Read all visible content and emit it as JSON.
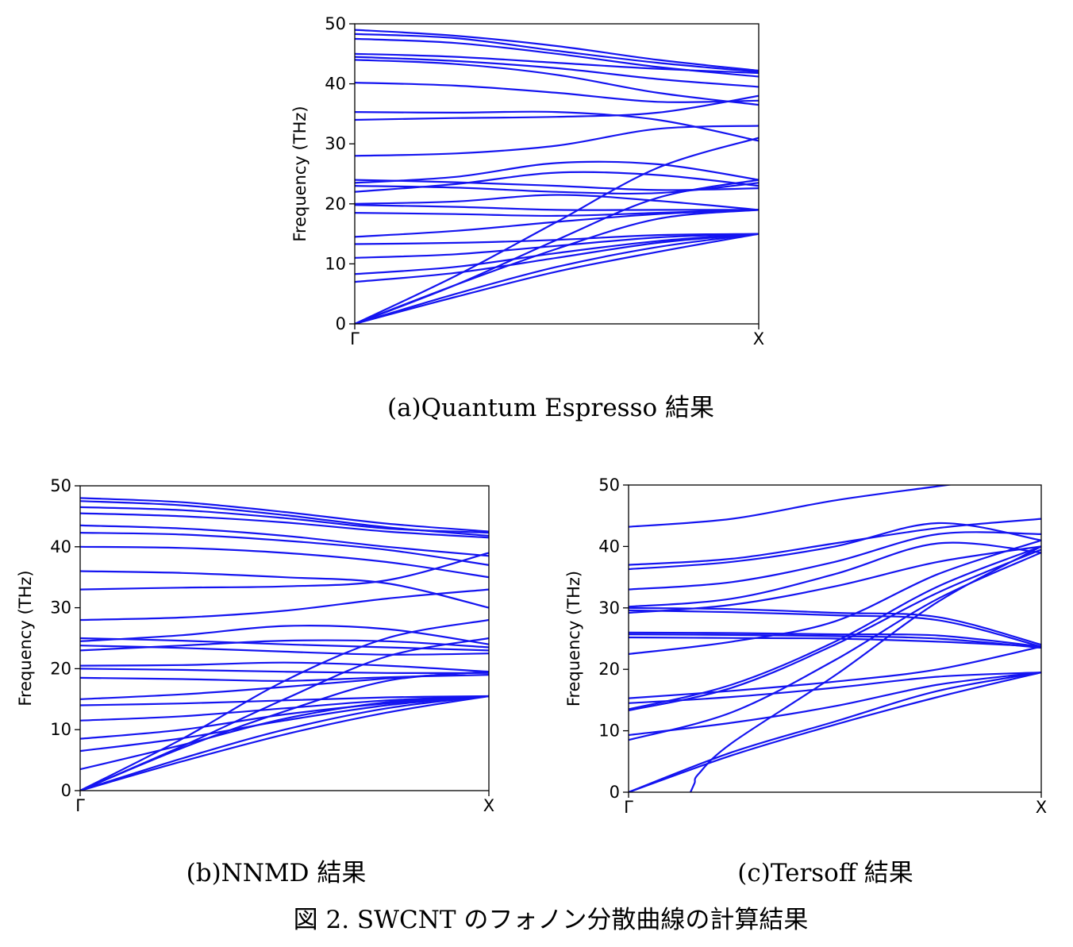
{
  "captions": {
    "a": "(a)Quantum Espresso 結果",
    "b": "(b)NNMD 結果",
    "c": "(c)Tersoff 結果",
    "figure": "図 2. SWCNT のフォノン分散曲線の計算結果"
  },
  "colors": {
    "band": "#1414f0",
    "axis": "#000000"
  },
  "chart_data": [
    {
      "id": "a",
      "type": "line",
      "ylabel": "Frequency (THz)",
      "xticks": [
        "Γ",
        "X"
      ],
      "x": [
        0,
        0.25,
        0.5,
        0.75,
        1
      ],
      "ylim": [
        0,
        50
      ],
      "yticks": [
        0,
        10,
        20,
        30,
        40,
        50
      ],
      "grid": false,
      "series": [
        {
          "values": [
            49,
            48,
            46.3,
            44,
            42.2
          ]
        },
        {
          "values": [
            48.3,
            47.6,
            45.5,
            43.5,
            42
          ]
        },
        {
          "values": [
            47.5,
            46.8,
            45,
            42.8,
            41.2
          ]
        },
        {
          "values": [
            45,
            44.5,
            43.5,
            42.5,
            41.8
          ]
        },
        {
          "values": [
            44.5,
            43.8,
            42.6,
            40.8,
            39.5
          ]
        },
        {
          "values": [
            44,
            43.3,
            41.5,
            38.5,
            36.5
          ]
        },
        {
          "values": [
            40.2,
            39.7,
            38.5,
            37,
            37.2
          ]
        },
        {
          "values": [
            35.3,
            35.2,
            35.3,
            34,
            30.5
          ]
        },
        {
          "values": [
            34,
            34.3,
            34.5,
            35.2,
            38
          ]
        },
        {
          "values": [
            28,
            28.4,
            29.7,
            32.5,
            33
          ]
        },
        {
          "values": [
            24,
            23.6,
            23,
            22.3,
            22.6
          ]
        },
        {
          "values": [
            23.5,
            24.5,
            26.8,
            26.6,
            24
          ]
        },
        {
          "values": [
            23,
            22.7,
            22,
            21.8,
            23.5
          ]
        },
        {
          "values": [
            22,
            23.3,
            25.2,
            24.8,
            23
          ]
        },
        {
          "values": [
            20,
            20.4,
            21.5,
            20.5,
            19
          ]
        },
        {
          "values": [
            19.8,
            19.5,
            19,
            19,
            19
          ]
        },
        {
          "values": [
            18.5,
            18.3,
            18,
            18.5,
            19
          ]
        },
        {
          "values": [
            14.5,
            15.5,
            17,
            18.3,
            19
          ]
        },
        {
          "values": [
            13.3,
            13.5,
            14,
            14.8,
            15
          ]
        },
        {
          "values": [
            11,
            11.6,
            13,
            14.4,
            15
          ]
        },
        {
          "values": [
            8.3,
            9.5,
            11.8,
            13.8,
            15
          ]
        },
        {
          "values": [
            7,
            8.5,
            11,
            13.5,
            15
          ]
        },
        {
          "values": [
            0,
            6.5,
            12.5,
            17.5,
            19
          ]
        },
        {
          "values": [
            0,
            6.5,
            14,
            21,
            24
          ]
        },
        {
          "values": [
            0,
            8,
            17,
            26,
            31
          ]
        },
        {
          "values": [
            0,
            4.5,
            8.7,
            12,
            15
          ]
        },
        {
          "values": [
            0,
            5,
            9.5,
            12.8,
            15
          ]
        }
      ]
    },
    {
      "id": "b",
      "type": "line",
      "ylabel": "Frequency (THz)",
      "xticks": [
        "Γ",
        "X"
      ],
      "x": [
        0,
        0.25,
        0.5,
        0.75,
        1
      ],
      "ylim": [
        0,
        50
      ],
      "yticks": [
        0,
        10,
        20,
        30,
        40,
        50
      ],
      "grid": false,
      "series": [
        {
          "values": [
            48,
            47.3,
            45.7,
            43.8,
            42.5
          ]
        },
        {
          "values": [
            47.5,
            46.8,
            45.2,
            43.2,
            41.8
          ]
        },
        {
          "values": [
            46.5,
            46,
            44.7,
            43,
            42.3
          ]
        },
        {
          "values": [
            45.5,
            45,
            44,
            42.5,
            41.5
          ]
        },
        {
          "values": [
            43.5,
            43,
            41.8,
            40,
            38.5
          ]
        },
        {
          "values": [
            42.3,
            42,
            41,
            39.5,
            37
          ]
        },
        {
          "values": [
            40,
            39.8,
            39,
            37.5,
            35
          ]
        },
        {
          "values": [
            36,
            35.7,
            35,
            34,
            30
          ]
        },
        {
          "values": [
            33,
            33.3,
            33.5,
            34.5,
            39
          ]
        },
        {
          "values": [
            28,
            28.4,
            29.5,
            31.5,
            33
          ]
        },
        {
          "values": [
            25,
            24.6,
            24,
            23.5,
            23
          ]
        },
        {
          "values": [
            24.5,
            25.5,
            27,
            26.5,
            24
          ]
        },
        {
          "values": [
            23.8,
            23.4,
            22.8,
            22.3,
            22.5
          ]
        },
        {
          "values": [
            23,
            23.8,
            24.6,
            24.5,
            23.5
          ]
        },
        {
          "values": [
            20.5,
            20.6,
            21,
            20.5,
            19.5
          ]
        },
        {
          "values": [
            20,
            19.8,
            19.5,
            19.3,
            19.3
          ]
        },
        {
          "values": [
            18.5,
            18.3,
            18,
            18.6,
            19
          ]
        },
        {
          "values": [
            15,
            15.8,
            17,
            18.4,
            19.5
          ]
        },
        {
          "values": [
            14,
            14.3,
            14.8,
            15.3,
            15.5
          ]
        },
        {
          "values": [
            11.5,
            12.2,
            13.5,
            14.8,
            15.5
          ]
        },
        {
          "values": [
            8.5,
            10,
            12.5,
            14.3,
            15.5
          ]
        },
        {
          "values": [
            6.5,
            8.6,
            11.5,
            14,
            15.5
          ]
        },
        {
          "values": [
            3.5,
            7.5,
            11.8,
            14.5,
            15.5
          ]
        },
        {
          "values": [
            0,
            7,
            13,
            18,
            19.5
          ]
        },
        {
          "values": [
            0,
            7.3,
            15,
            22,
            25
          ]
        },
        {
          "values": [
            0,
            8.5,
            18,
            25,
            28
          ]
        },
        {
          "values": [
            0,
            4.8,
            9.2,
            12.8,
            15.5
          ]
        },
        {
          "values": [
            0,
            5.3,
            10,
            13.5,
            15.5
          ]
        }
      ]
    },
    {
      "id": "c",
      "type": "line",
      "ylabel": "Frequency (THz)",
      "xticks": [
        "Γ",
        "X"
      ],
      "x": [
        0,
        0.25,
        0.5,
        0.75,
        1
      ],
      "ylim": [
        0,
        50
      ],
      "yticks": [
        0,
        10,
        20,
        30,
        40,
        50
      ],
      "grid": false,
      "series": [
        {
          "values": [
            43.2,
            44.5,
            47.5,
            49.8,
            52
          ]
        },
        {
          "values": [
            37,
            38,
            40.5,
            43,
            44.5
          ]
        },
        {
          "values": [
            36.3,
            37.5,
            40,
            43.8,
            41
          ]
        },
        {
          "values": [
            33,
            34.2,
            37.5,
            42,
            42
          ]
        },
        {
          "values": [
            30.2,
            31.5,
            35.5,
            40.5,
            39
          ]
        },
        {
          "values": [
            30,
            29.8,
            29.2,
            28.5,
            24
          ]
        },
        {
          "values": [
            29.6,
            29.3,
            28.8,
            28,
            23.7
          ]
        },
        {
          "values": [
            29.2,
            30.5,
            33.5,
            37.5,
            40
          ]
        },
        {
          "values": [
            26,
            25.9,
            25.7,
            25.5,
            23.7
          ]
        },
        {
          "values": [
            25.7,
            25.6,
            25.4,
            25,
            23.5
          ]
        },
        {
          "values": [
            25.2,
            25.1,
            25,
            24.5,
            23.7
          ]
        },
        {
          "values": [
            22.5,
            24.5,
            27.8,
            35.5,
            41
          ]
        },
        {
          "values": [
            15.3,
            16.5,
            18,
            20,
            23.7
          ]
        },
        {
          "values": [
            14.5,
            15.5,
            17,
            18.8,
            19.5
          ]
        },
        {
          "values": [
            13.5,
            17.5,
            24.5,
            33.5,
            40
          ]
        },
        {
          "values": [
            13.3,
            17,
            24,
            32.5,
            39.5
          ]
        },
        {
          "values": [
            9.3,
            11.3,
            14,
            17.5,
            19.5
          ]
        },
        {
          "values": [
            8.5,
            13,
            21.5,
            31.5,
            39
          ]
        },
        {
          "values": [
            0,
            6,
            11,
            15.5,
            19.5
          ]
        },
        {
          "values": [
            0,
            6.5,
            11.5,
            16.5,
            19.5
          ]
        },
        {
          "x": [
            0.15,
            0.16,
            0.17,
            0.25,
            0.5,
            0.75,
            1
          ],
          "values": [
            0,
            1.5,
            3,
            8,
            19,
            31,
            40
          ]
        }
      ]
    }
  ]
}
